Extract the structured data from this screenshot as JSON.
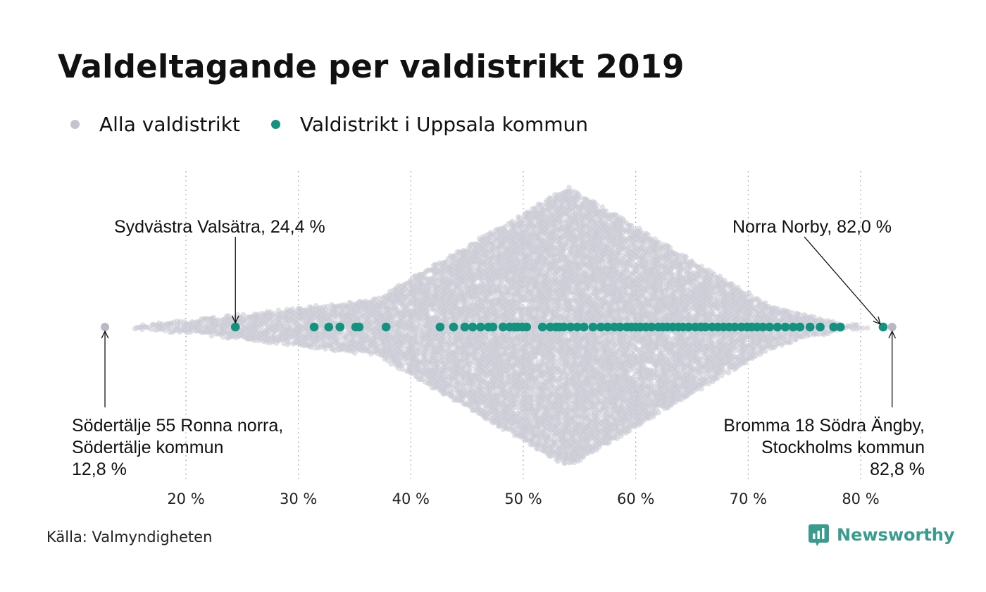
{
  "title": "Valdeltagande per valdistrikt 2019",
  "legend": [
    {
      "label": "Alla valdistrikt",
      "color": "#c9c8d3"
    },
    {
      "label": "Valdistrikt i Uppsala kommun",
      "color": "#14917f"
    }
  ],
  "source": "Källa: Valmyndigheten",
  "brand": "Newsworthy",
  "chart_data": {
    "type": "scatter",
    "subtype": "beeswarm",
    "xlim": [
      12,
      84
    ],
    "grid": "vertical dotted lines",
    "x_ticks": [
      "20 %",
      "30 %",
      "40 %",
      "50 %",
      "60 %",
      "70 %",
      "80 %"
    ],
    "x_tick_values": [
      20,
      30,
      40,
      50,
      60,
      70,
      80
    ],
    "series": [
      {
        "name": "Alla valdistrikt",
        "color": "#c9c8d3",
        "distribution": "approximately 6000 districts, densest around 54 %",
        "min": 12.8,
        "max": 82.8
      },
      {
        "name": "Valdistrikt i Uppsala kommun",
        "color": "#14917f",
        "values": [
          24.4,
          31.4,
          32.7,
          33.7,
          35.1,
          35.4,
          37.8,
          42.6,
          43.8,
          44.8,
          45.5,
          46.2,
          46.9,
          47.3,
          48.2,
          48.8,
          49.2,
          49.5,
          49.9,
          50.3,
          51.7,
          52.4,
          52.9,
          53.2,
          53.6,
          54.2,
          54.8,
          55.4,
          56.2,
          56.9,
          57.5,
          58.1,
          58.6,
          59.2,
          59.6,
          60.0,
          60.4,
          60.9,
          61.4,
          62.0,
          62.4,
          62.8,
          63.3,
          63.8,
          64.2,
          64.7,
          65.3,
          65.8,
          66.2,
          66.8,
          67.3,
          67.8,
          68.3,
          68.8,
          69.4,
          69.9,
          70.3,
          70.8,
          71.3,
          71.9,
          72.6,
          73.3,
          74.0,
          74.6,
          75.5,
          76.4,
          77.6,
          78.2,
          82.0
        ]
      }
    ],
    "annotations": [
      {
        "lines": [
          "Sydvästra Valsätra, 24,4 %"
        ],
        "value": 24.4,
        "series": "Valdistrikt i Uppsala kommun"
      },
      {
        "lines": [
          "Norra Norby, 82,0 %"
        ],
        "value": 82.0,
        "series": "Valdistrikt i Uppsala kommun"
      },
      {
        "lines": [
          "Södertälje 55 Ronna norra,",
          "Södertälje kommun",
          "12,8 %"
        ],
        "value": 12.8,
        "series": "Alla valdistrikt"
      },
      {
        "lines": [
          "Bromma 18 Södra Ängby,",
          "Stockholms kommun",
          "82,8 %"
        ],
        "value": 82.8,
        "series": "Alla valdistrikt"
      }
    ]
  }
}
